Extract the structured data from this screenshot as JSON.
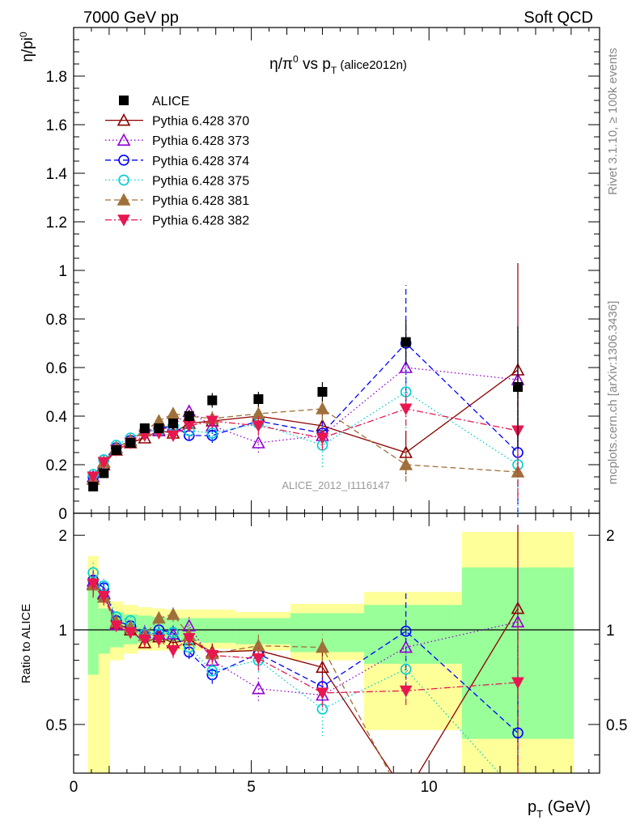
{
  "header": {
    "left": "7000 GeV pp",
    "right": "Soft QCD",
    "side_top": "Rivet 3.1.10, ≥ 100k events",
    "side_bottom": "mcplots.cern.ch [arXiv:1306.3436]",
    "watermark": "ALICE_2012_I1116147"
  },
  "top_plot": {
    "title": "η/π⁰ vs p_T (alice2012n)",
    "ylabel": "η/pi⁰",
    "ylim": [
      0,
      2.0
    ],
    "yticks": [
      "0",
      "0.2",
      "0.4",
      "0.6",
      "0.8",
      "1",
      "1.2",
      "1.4",
      "1.6",
      "1.8"
    ]
  },
  "ratio_plot": {
    "ylabel": "Ratio to ALICE",
    "yticks": [
      "0.5",
      "1",
      "2"
    ],
    "ylim": [
      0.35,
      2.35
    ]
  },
  "x_axis": {
    "label": "p_T (GeV)",
    "xlim": [
      0,
      14.8
    ],
    "ticks": [
      "0",
      "5",
      "10"
    ]
  },
  "chart_data": {
    "type": "scatter",
    "x": [
      0.55,
      0.85,
      1.2,
      1.6,
      2.0,
      2.4,
      2.8,
      3.25,
      3.9,
      5.2,
      7.0,
      9.35,
      12.5
    ],
    "series": [
      {
        "name": "ALICE",
        "color": "#000000",
        "marker": "square",
        "line": "none",
        "values": [
          0.11,
          0.165,
          0.26,
          0.29,
          0.35,
          0.35,
          0.37,
          0.4,
          0.465,
          0.47,
          0.5,
          0.705,
          0.52
        ],
        "errors": [
          0.01,
          0.015,
          0.015,
          0.02,
          0.02,
          0.02,
          0.02,
          0.025,
          0.03,
          0.03,
          0.04,
          0.09,
          0.25
        ],
        "ratio_band_yellow": [
          [
            0.3,
            1.72
          ],
          [
            0.3,
            1.25
          ],
          [
            0.8,
            1.23
          ],
          [
            0.84,
            1.2
          ],
          [
            0.86,
            1.18
          ],
          [
            0.86,
            1.17
          ],
          [
            0.86,
            1.16
          ],
          [
            0.86,
            1.16
          ],
          [
            0.87,
            1.16
          ],
          [
            0.86,
            1.14
          ],
          [
            0.8,
            1.21
          ],
          [
            0.48,
            1.32
          ],
          [
            0.35,
            2.05
          ]
        ],
        "ratio_band_green": [
          [
            0.72,
            1.46
          ],
          [
            0.84,
            1.17
          ],
          [
            0.88,
            1.14
          ],
          [
            0.9,
            1.12
          ],
          [
            0.91,
            1.11
          ],
          [
            0.92,
            1.1
          ],
          [
            0.92,
            1.09
          ],
          [
            0.92,
            1.09
          ],
          [
            0.91,
            1.09
          ],
          [
            0.9,
            1.09
          ],
          [
            0.85,
            1.13
          ],
          [
            0.78,
            1.2
          ],
          [
            0.45,
            1.58
          ]
        ]
      },
      {
        "name": "Pythia 6.428 370",
        "color": "#8b0000",
        "marker": "triangle-open",
        "line": "solid",
        "values": [
          0.14,
          0.2,
          0.26,
          0.29,
          0.31,
          0.34,
          0.33,
          0.37,
          0.38,
          0.4,
          0.36,
          0.25,
          0.59
        ],
        "errors": [
          0.01,
          0.01,
          0.01,
          0.01,
          0.01,
          0.02,
          0.02,
          0.02,
          0.03,
          0.04,
          0.06,
          0.09,
          0.44
        ],
        "ratio": [
          1.4,
          1.3,
          1.05,
          1.0,
          0.91,
          0.95,
          0.91,
          0.93,
          0.85,
          0.86,
          0.76,
          0.3,
          1.17
        ]
      },
      {
        "name": "Pythia 6.428 373",
        "color": "#9400d3",
        "marker": "triangle-open",
        "line": "dotted",
        "values": [
          0.15,
          0.21,
          0.27,
          0.3,
          0.34,
          0.34,
          0.36,
          0.42,
          0.36,
          0.29,
          0.32,
          0.6,
          0.55
        ],
        "errors": [
          0.01,
          0.01,
          0.01,
          0.01,
          0.02,
          0.02,
          0.02,
          0.03,
          0.03,
          0.04,
          0.05,
          0.15,
          0.3
        ],
        "ratio": [
          1.43,
          1.31,
          1.04,
          1.02,
          0.98,
          0.97,
          0.97,
          1.03,
          0.8,
          0.65,
          0.62,
          0.88,
          1.06
        ]
      },
      {
        "name": "Pythia 6.428 374",
        "color": "#0000ff",
        "marker": "circle-open",
        "line": "dashed",
        "values": [
          0.15,
          0.22,
          0.27,
          0.3,
          0.34,
          0.35,
          0.36,
          0.32,
          0.32,
          0.38,
          0.33,
          0.7,
          0.25
        ],
        "errors": [
          0.01,
          0.01,
          0.01,
          0.01,
          0.02,
          0.02,
          0.02,
          0.02,
          0.03,
          0.04,
          0.05,
          0.24,
          0.25
        ],
        "ratio": [
          1.44,
          1.36,
          1.07,
          1.03,
          0.97,
          1.0,
          0.98,
          0.85,
          0.72,
          0.84,
          0.66,
          0.99,
          0.47
        ]
      },
      {
        "name": "Pythia 6.428 375",
        "color": "#00ced1",
        "marker": "circle-open",
        "line": "dotted",
        "values": [
          0.16,
          0.22,
          0.28,
          0.31,
          0.34,
          0.34,
          0.36,
          0.34,
          0.33,
          0.37,
          0.28,
          0.5,
          0.2
        ],
        "errors": [
          0.01,
          0.01,
          0.01,
          0.01,
          0.02,
          0.02,
          0.02,
          0.02,
          0.03,
          0.04,
          0.09,
          0.15,
          0.2
        ],
        "ratio": [
          1.52,
          1.38,
          1.1,
          1.07,
          0.97,
          0.97,
          0.98,
          0.88,
          0.74,
          0.8,
          0.56,
          0.75,
          0.3
        ]
      },
      {
        "name": "Pythia 6.428 381",
        "color": "#a0703a",
        "marker": "triangle-filled",
        "line": "dashed",
        "values": [
          0.14,
          0.21,
          0.27,
          0.3,
          0.34,
          0.38,
          0.41,
          0.4,
          0.39,
          0.41,
          0.43,
          0.2,
          0.17
        ],
        "errors": [
          0.01,
          0.01,
          0.01,
          0.01,
          0.02,
          0.02,
          0.02,
          0.02,
          0.03,
          0.04,
          0.05,
          0.07,
          0.09
        ],
        "ratio": [
          1.39,
          1.27,
          1.06,
          1.02,
          0.96,
          1.09,
          1.12,
          0.96,
          0.84,
          0.89,
          0.88,
          0.28,
          0.33
        ]
      },
      {
        "name": "Pythia 6.428 382",
        "color": "#e8174f",
        "marker": "triangle-down-filled",
        "line": "dashdot",
        "values": [
          0.15,
          0.21,
          0.26,
          0.29,
          0.32,
          0.33,
          0.32,
          0.36,
          0.38,
          0.36,
          0.31,
          0.43,
          0.34
        ],
        "errors": [
          0.01,
          0.01,
          0.01,
          0.01,
          0.02,
          0.02,
          0.02,
          0.02,
          0.03,
          0.04,
          0.05,
          0.07,
          0.28
        ],
        "ratio": [
          1.4,
          1.28,
          1.03,
          0.98,
          0.93,
          0.93,
          0.86,
          0.94,
          0.83,
          0.81,
          0.63,
          0.64,
          0.68
        ]
      }
    ]
  }
}
